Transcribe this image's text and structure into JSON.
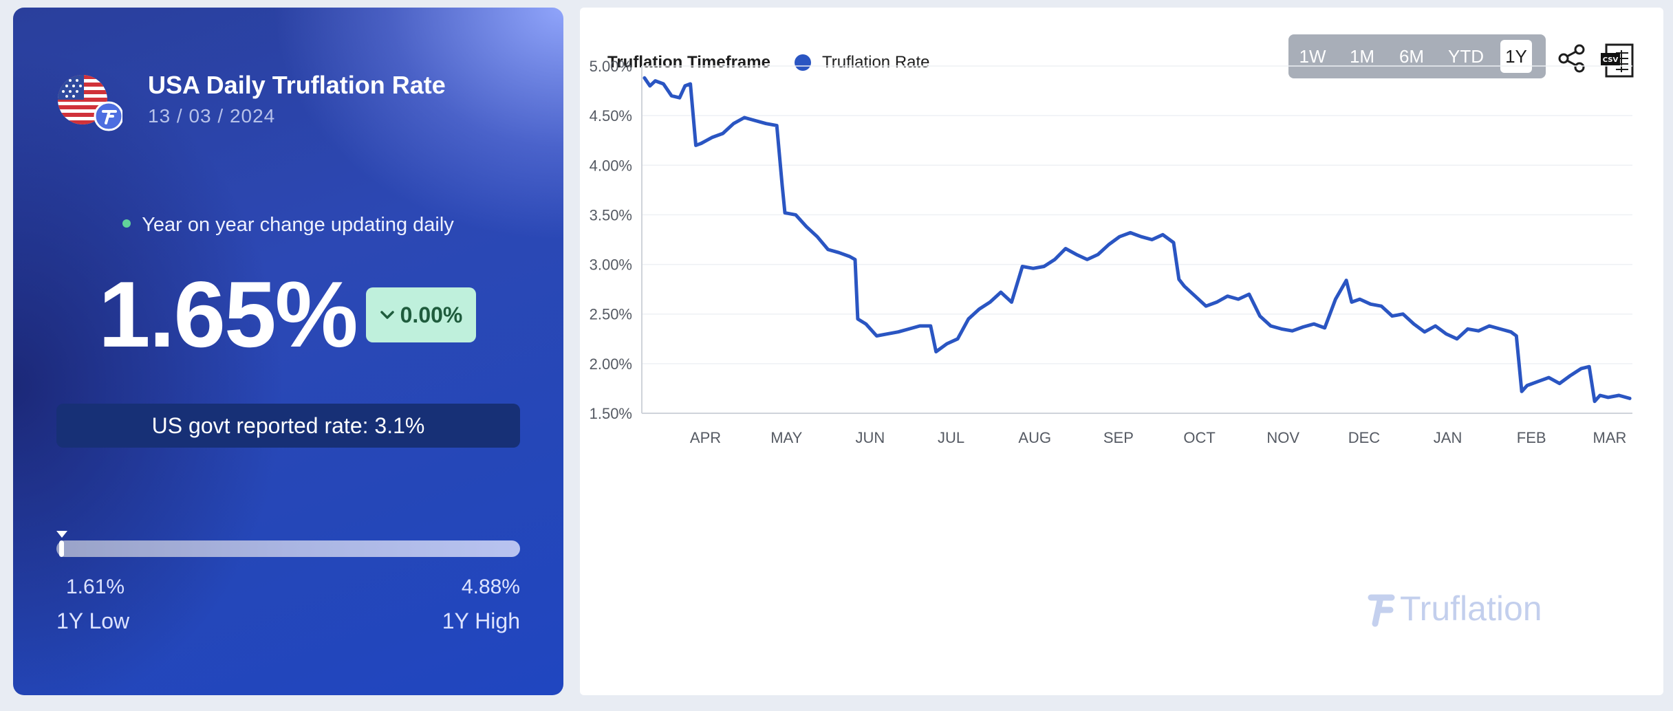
{
  "summary": {
    "title": "USA Daily Truflation Rate",
    "date": "13 / 03 / 2024",
    "status_text": "Year on year change updating daily",
    "rate": "1.65%",
    "change": "0.00%",
    "govt_rate": "US govt reported rate: 3.1%",
    "low_value": "1.61%",
    "low_label": "1Y Low",
    "high_value": "4.88%",
    "high_label": "1Y High",
    "range_position": 0.005
  },
  "toolbar": {
    "legend_title": "Truflation Timeframe",
    "legend_series": "Truflation Rate",
    "timeframes": [
      "1W",
      "1M",
      "6M",
      "YTD",
      "1Y"
    ],
    "active_timeframe": "1Y",
    "csv_label": "CSV"
  },
  "watermark": "Truflation",
  "colors": {
    "series": "#2a55c2",
    "accent_green": "#62d39a",
    "badge_bg": "#bff0dc"
  },
  "chart_data": {
    "type": "line",
    "ylim": [
      1.5,
      5.0
    ],
    "y_ticks": [
      "1.50%",
      "2.00%",
      "2.50%",
      "3.00%",
      "3.50%",
      "4.00%",
      "4.50%",
      "5.00%"
    ],
    "x_ticks": [
      "APR",
      "MAY",
      "JUN",
      "JUL",
      "AUG",
      "SEP",
      "OCT",
      "NOV",
      "DEC",
      "JAN",
      "FEB",
      "MAR"
    ],
    "grid": true,
    "series": [
      {
        "name": "Truflation Rate",
        "x": [
          "2023-03-14",
          "2023-03-16",
          "2023-03-18",
          "2023-03-21",
          "2023-03-24",
          "2023-03-27",
          "2023-03-29",
          "2023-03-31",
          "2023-04-02",
          "2023-04-04",
          "2023-04-06",
          "2023-04-08",
          "2023-04-12",
          "2023-04-16",
          "2023-04-20",
          "2023-04-24",
          "2023-04-28",
          "2023-05-02",
          "2023-05-04",
          "2023-05-05",
          "2023-05-09",
          "2023-05-13",
          "2023-05-17",
          "2023-05-21",
          "2023-05-25",
          "2023-05-29",
          "2023-05-31",
          "2023-06-01",
          "2023-06-04",
          "2023-06-08",
          "2023-06-12",
          "2023-06-16",
          "2023-06-20",
          "2023-06-24",
          "2023-06-28",
          "2023-06-30",
          "2023-07-04",
          "2023-07-08",
          "2023-07-12",
          "2023-07-16",
          "2023-07-20",
          "2023-07-24",
          "2023-07-28",
          "2023-08-01",
          "2023-08-05",
          "2023-08-09",
          "2023-08-13",
          "2023-08-17",
          "2023-08-21",
          "2023-08-25",
          "2023-08-29",
          "2023-09-02",
          "2023-09-06",
          "2023-09-10",
          "2023-09-14",
          "2023-09-18",
          "2023-09-22",
          "2023-09-26",
          "2023-09-28",
          "2023-09-30",
          "2023-10-04",
          "2023-10-08",
          "2023-10-12",
          "2023-10-16",
          "2023-10-20",
          "2023-10-24",
          "2023-10-28",
          "2023-11-01",
          "2023-11-05",
          "2023-11-09",
          "2023-11-13",
          "2023-11-17",
          "2023-11-21",
          "2023-11-25",
          "2023-11-29",
          "2023-12-01",
          "2023-12-04",
          "2023-12-08",
          "2023-12-12",
          "2023-12-16",
          "2023-12-20",
          "2023-12-24",
          "2023-12-28",
          "2024-01-01",
          "2024-01-05",
          "2024-01-09",
          "2024-01-13",
          "2024-01-17",
          "2024-01-21",
          "2024-01-25",
          "2024-01-29",
          "2024-01-31",
          "2024-02-02",
          "2024-02-04",
          "2024-02-08",
          "2024-02-12",
          "2024-02-16",
          "2024-02-20",
          "2024-02-24",
          "2024-02-27",
          "2024-02-29",
          "2024-03-02",
          "2024-03-05",
          "2024-03-09",
          "2024-03-13"
        ],
        "values": [
          4.88,
          4.8,
          4.85,
          4.82,
          4.7,
          4.68,
          4.8,
          4.82,
          4.2,
          4.22,
          4.25,
          4.28,
          4.32,
          4.42,
          4.48,
          4.45,
          4.42,
          4.4,
          3.8,
          3.52,
          3.5,
          3.38,
          3.28,
          3.15,
          3.12,
          3.08,
          3.05,
          2.45,
          2.4,
          2.28,
          2.3,
          2.32,
          2.35,
          2.38,
          2.38,
          2.12,
          2.2,
          2.25,
          2.45,
          2.55,
          2.62,
          2.72,
          2.62,
          2.98,
          2.96,
          2.98,
          3.05,
          3.16,
          3.1,
          3.05,
          3.1,
          3.2,
          3.28,
          3.32,
          3.28,
          3.25,
          3.3,
          3.22,
          2.85,
          2.78,
          2.68,
          2.58,
          2.62,
          2.68,
          2.65,
          2.7,
          2.48,
          2.38,
          2.35,
          2.33,
          2.37,
          2.4,
          2.36,
          2.65,
          2.84,
          2.62,
          2.65,
          2.6,
          2.58,
          2.48,
          2.5,
          2.4,
          2.32,
          2.38,
          2.3,
          2.25,
          2.35,
          2.33,
          2.38,
          2.35,
          2.32,
          2.28,
          1.72,
          1.78,
          1.82,
          1.86,
          1.8,
          1.88,
          1.95,
          1.97,
          1.62,
          1.68,
          1.66,
          1.68,
          1.65
        ]
      }
    ]
  }
}
